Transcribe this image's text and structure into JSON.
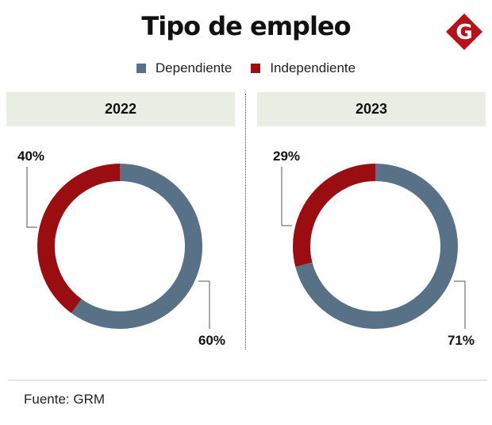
{
  "title": "Tipo de empleo",
  "logo_letter": "G",
  "source": "Fuente: GRM",
  "colors": {
    "dependiente": "#587186",
    "independiente": "#9a0e12",
    "header_bg": "#e9ede4",
    "logo": "#b5121b"
  },
  "chart_data": [
    {
      "type": "pie",
      "title": "2022",
      "legend": [
        "Dependiente",
        "Independiente"
      ],
      "slices": [
        {
          "name": "Dependiente",
          "value": 60,
          "label": "60%"
        },
        {
          "name": "Independiente",
          "value": 40,
          "label": "40%"
        }
      ],
      "legend_position": "top"
    },
    {
      "type": "pie",
      "title": "2023",
      "legend": [
        "Dependiente",
        "Independiente"
      ],
      "slices": [
        {
          "name": "Dependiente",
          "value": 71,
          "label": "71%"
        },
        {
          "name": "Independiente",
          "value": 29,
          "label": "29%"
        }
      ],
      "legend_position": "top"
    }
  ]
}
